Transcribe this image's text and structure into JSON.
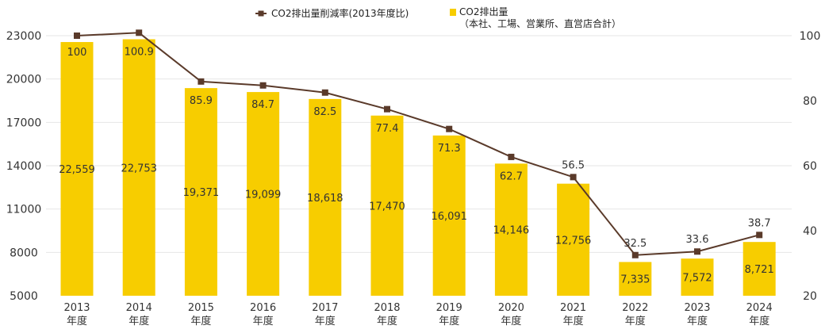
{
  "chart_data": {
    "type": "bar",
    "categories": [
      [
        "2013",
        "年度"
      ],
      [
        "2014",
        "年度"
      ],
      [
        "2015",
        "年度"
      ],
      [
        "2016",
        "年度"
      ],
      [
        "2017",
        "年度"
      ],
      [
        "2018",
        "年度"
      ],
      [
        "2019",
        "年度"
      ],
      [
        "2020",
        "年度"
      ],
      [
        "2021",
        "年度"
      ],
      [
        "2022",
        "年度"
      ],
      [
        "2023",
        "年度"
      ],
      [
        "2024",
        "年度"
      ]
    ],
    "series": [
      {
        "name": "CO2排出量（本社、工場、営業所、直営店合計）",
        "legend_lines": [
          "CO2排出量",
          "（本社、工場、営業所、直営店合計）"
        ],
        "type": "bar",
        "axis": "left",
        "values": [
          22559,
          22753,
          19371,
          19099,
          18618,
          17470,
          16091,
          14146,
          12756,
          7335,
          7572,
          8721
        ],
        "labels": [
          "22,559",
          "22,753",
          "19,371",
          "19,099",
          "18,618",
          "17,470",
          "16,091",
          "14,146",
          "12,756",
          "7,335",
          "7,572",
          "8,721"
        ]
      },
      {
        "name": "CO2排出量削減率(2013年度比)",
        "type": "line",
        "axis": "right",
        "values": [
          100,
          100.9,
          85.9,
          84.7,
          82.5,
          77.4,
          71.3,
          62.7,
          56.5,
          32.5,
          33.6,
          38.7
        ],
        "labels": [
          "100",
          "100.9",
          "85.9",
          "84.7",
          "82.5",
          "77.4",
          "71.3",
          "62.7",
          "56.5",
          "32.5",
          "33.6",
          "38.7"
        ]
      }
    ],
    "y_left": {
      "min": 5000,
      "max": 23000,
      "ticks": [
        5000,
        8000,
        11000,
        14000,
        17000,
        20000,
        23000
      ]
    },
    "y_right": {
      "min": 20,
      "max": 100,
      "ticks": [
        20,
        40,
        60,
        80,
        100
      ]
    },
    "grid": true,
    "legend_position": "top",
    "colors": {
      "bar": "#F7CD00",
      "line": "#5A3A2A",
      "grid": "#E6E6E6",
      "text": "#333333"
    }
  }
}
